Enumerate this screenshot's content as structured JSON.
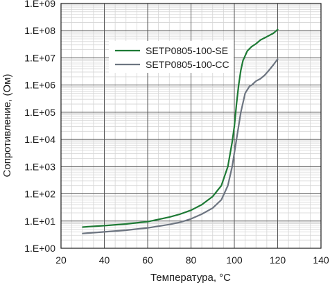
{
  "chart_data": {
    "type": "line",
    "title": "",
    "xlabel": "Температура, °C",
    "ylabel": "Сопротивление, (Ом)",
    "xlim": [
      20,
      140
    ],
    "ylim_log10": [
      0,
      9
    ],
    "y_scale": "log",
    "x_ticks": [
      20,
      40,
      60,
      80,
      100,
      120,
      140
    ],
    "y_ticks": [
      {
        "exp": 0,
        "label": "1.E+00"
      },
      {
        "exp": 1,
        "label": "1.E+01"
      },
      {
        "exp": 2,
        "label": "1.E+02"
      },
      {
        "exp": 3,
        "label": "1.E+03"
      },
      {
        "exp": 4,
        "label": "1.E+04"
      },
      {
        "exp": 5,
        "label": "1.E+05"
      },
      {
        "exp": 6,
        "label": "1.E+06"
      },
      {
        "exp": 7,
        "label": "1.E+07"
      },
      {
        "exp": 8,
        "label": "1.E+08"
      },
      {
        "exp": 9,
        "label": "1.E+09"
      }
    ],
    "grid": true,
    "legend_position": "top-center",
    "series": [
      {
        "name": "SETP0805-100-SE",
        "color": "#1e7a35",
        "x": [
          30,
          40,
          50,
          60,
          70,
          75,
          80,
          85,
          90,
          94,
          97,
          99,
          100,
          101,
          102,
          103,
          104,
          106,
          108,
          110,
          112,
          115,
          118,
          120
        ],
        "y": [
          6,
          6.8,
          7.8,
          9.5,
          14,
          18,
          25,
          40,
          80,
          200,
          1000,
          8000,
          30000,
          200000,
          1000000,
          3500000,
          8000000,
          18000000,
          26000000,
          33000000,
          45000000,
          60000000,
          80000000,
          110000000
        ]
      },
      {
        "name": "SETP0805-100-CC",
        "color": "#6d7581",
        "x": [
          30,
          40,
          50,
          60,
          70,
          75,
          80,
          85,
          90,
          94,
          97,
          99,
          101,
          103,
          105,
          107,
          108,
          110,
          112,
          114,
          116,
          118,
          120
        ],
        "y": [
          3.5,
          4,
          4.6,
          5.6,
          7.5,
          9,
          12,
          18,
          30,
          60,
          200,
          1000,
          10000,
          100000,
          500000,
          900000,
          1000000,
          1400000,
          1700000,
          2300000,
          3500000,
          5500000,
          9000000
        ]
      }
    ]
  }
}
